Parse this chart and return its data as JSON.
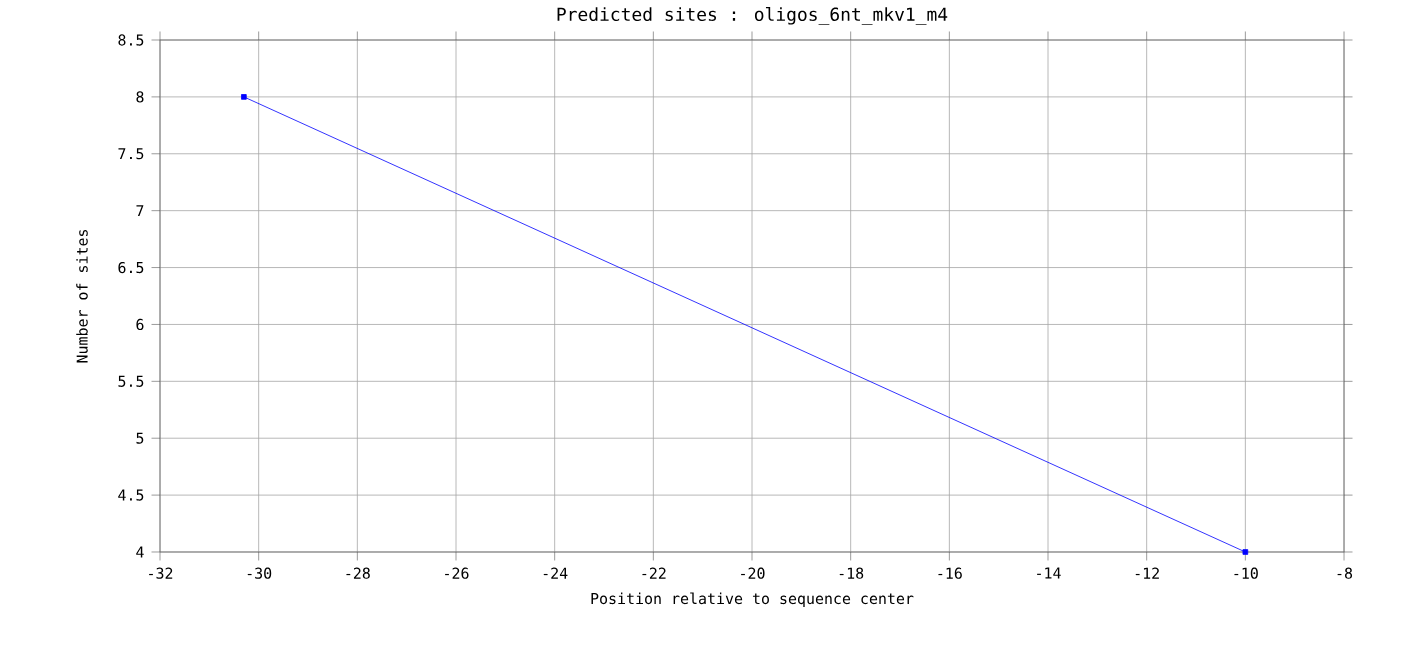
{
  "chart_data": {
    "type": "line",
    "title": "Predicted sites : oligos_6nt_mkv1_m4",
    "xlabel": "Position relative to sequence center",
    "ylabel": "Number of sites",
    "x": [
      -30.3,
      -10
    ],
    "series": [
      {
        "color": "#0000ff",
        "values": [
          8,
          4
        ]
      }
    ],
    "xlim": [
      -32,
      -8
    ],
    "ylim": [
      4,
      8.5
    ],
    "xticks": [
      -32,
      -30,
      -28,
      -26,
      -24,
      -22,
      -20,
      -18,
      -16,
      -14,
      -12,
      -10,
      -8
    ],
    "yticks": [
      4,
      4.5,
      5,
      5.5,
      6,
      6.5,
      7,
      7.5,
      8,
      8.5
    ],
    "grid": true,
    "marker": "square",
    "line_style": "solid"
  }
}
